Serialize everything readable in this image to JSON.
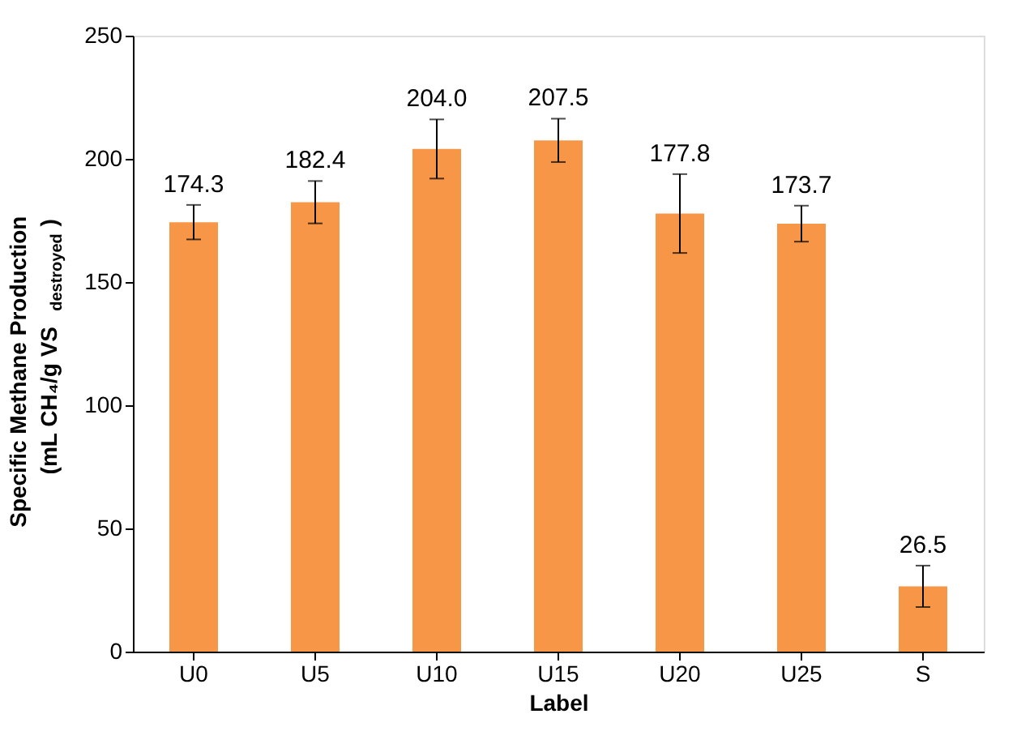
{
  "chart_data": {
    "type": "bar",
    "xlabel": "Label",
    "ylabel": "Specific Methane Production\n(mL CH₄/g VS$_{destroyed}$)",
    "categories": [
      "U0",
      "U5",
      "U10",
      "U15",
      "U20",
      "U25",
      "S"
    ],
    "values": [
      174.3,
      182.4,
      204.0,
      207.5,
      177.8,
      173.7,
      26.5
    ],
    "errors": [
      7,
      8.6,
      12,
      8.8,
      16,
      7.3,
      8.4
    ],
    "value_labels": [
      "174.3",
      "182.4",
      "204.0",
      "207.5",
      "177.8",
      "173.7",
      "26.5"
    ],
    "color": "#f79646",
    "grid": false,
    "ylim": [
      0,
      250
    ],
    "yticks": [
      0,
      50,
      100,
      150,
      200,
      250
    ]
  }
}
